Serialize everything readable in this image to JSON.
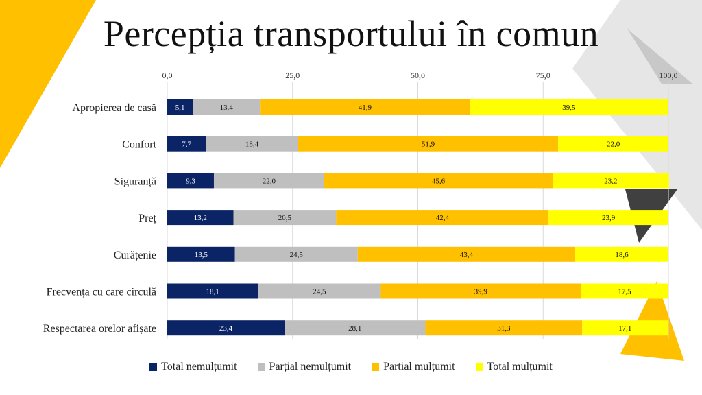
{
  "title": "Percepția transportului în comun",
  "chart_data": {
    "type": "bar",
    "orientation": "horizontal",
    "stacked": true,
    "xlim": [
      0,
      100
    ],
    "x_ticks": [
      "0,0",
      "25,0",
      "50,0",
      "75,0",
      "100,0"
    ],
    "x_tick_values": [
      0,
      25,
      50,
      75,
      100
    ],
    "x_axis_position": "top",
    "grid": true,
    "legend_position": "bottom",
    "categories": [
      "Apropierea de casă",
      "Confort",
      "Siguranță",
      "Preț",
      "Curățenie",
      "Frecvența cu care circulă",
      "Respectarea orelor afișate"
    ],
    "series": [
      {
        "name": "Total nemulțumit",
        "color": "#0b2466",
        "label_color": "#ffffff",
        "values": [
          5.1,
          7.7,
          9.3,
          13.2,
          13.5,
          18.1,
          23.4
        ],
        "labels": [
          "5,1",
          "7,7",
          "9,3",
          "13,2",
          "13,5",
          "18,1",
          "23,4"
        ]
      },
      {
        "name": "Parțial nemulțumit",
        "color": "#bfbfbf",
        "label_color": "#111111",
        "values": [
          13.4,
          18.4,
          22.0,
          20.5,
          24.5,
          24.5,
          28.1
        ],
        "labels": [
          "13,4",
          "18,4",
          "22,0",
          "20,5",
          "24,5",
          "24,5",
          "28,1"
        ]
      },
      {
        "name": "Partial mulțumit",
        "color": "#ffc000",
        "label_color": "#111111",
        "values": [
          41.9,
          51.9,
          45.6,
          42.4,
          43.4,
          39.9,
          31.3
        ],
        "labels": [
          "41,9",
          "51,9",
          "45,6",
          "42,4",
          "43,4",
          "39,9",
          "31,3"
        ]
      },
      {
        "name": "Total mulțumit",
        "color": "#ffff00",
        "label_color": "#111111",
        "values": [
          39.5,
          22.0,
          23.2,
          23.9,
          18.6,
          17.5,
          17.1
        ],
        "labels": [
          "39,5",
          "22,0",
          "23,2",
          "23,9",
          "18,6",
          "17,5",
          "17,1"
        ]
      }
    ]
  }
}
